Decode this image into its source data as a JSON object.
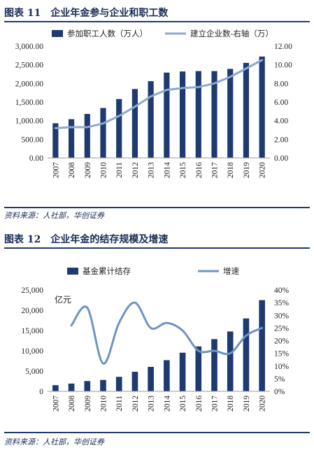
{
  "figure11": {
    "title": "图表 11　企业年金参与企业和职工数",
    "source": "资料来源：人社部，华创证券"
  },
  "figure12": {
    "title": "图表 12　企业年金的结存规模及增速",
    "source": "资料来源：人社部，华创证券"
  },
  "chart_data": [
    {
      "type": "bar",
      "title": "图表 11 企业年金参与企业和职工数",
      "categories": [
        "2007",
        "2008",
        "2009",
        "2010",
        "2011",
        "2012",
        "2013",
        "2014",
        "2015",
        "2016",
        "2017",
        "2018",
        "2019",
        "2020"
      ],
      "series": [
        {
          "name": "参加职工人数（万人）",
          "type": "bar",
          "axis": "left",
          "color": "#1f3a6e",
          "values": [
            930,
            1040,
            1180,
            1340,
            1580,
            1850,
            2060,
            2290,
            2320,
            2330,
            2330,
            2390,
            2550,
            2720
          ]
        },
        {
          "name": "建立企业数-右轴（万）",
          "type": "line",
          "axis": "right",
          "color": "#8fa8cf",
          "values": [
            3.2,
            3.3,
            3.3,
            3.7,
            4.5,
            5.5,
            6.6,
            7.3,
            7.5,
            7.6,
            8.0,
            8.7,
            9.6,
            10.5
          ]
        }
      ],
      "y_left": {
        "min": 0,
        "max": 3000,
        "ticks": [
          "0.00",
          "500.00",
          "1,000.00",
          "1,500.00",
          "2,000.00",
          "2,500.00",
          "3,000.00"
        ]
      },
      "y_right": {
        "min": 0,
        "max": 12,
        "ticks": [
          "0.00",
          "2.00",
          "4.00",
          "6.00",
          "8.00",
          "10.00",
          "12.00"
        ]
      },
      "legend": "top"
    },
    {
      "type": "bar",
      "title": "图表 12 企业年金的结存规模及增速",
      "unit_label": "亿元",
      "categories": [
        "2007",
        "2008",
        "2009",
        "2010",
        "2011",
        "2012",
        "2013",
        "2014",
        "2015",
        "2016",
        "2017",
        "2018",
        "2019",
        "2020"
      ],
      "series": [
        {
          "name": "基金累计结存",
          "type": "bar",
          "axis": "left",
          "color": "#1f3a6e",
          "values": [
            1519,
            1911,
            2533,
            2809,
            3570,
            4821,
            6035,
            7689,
            9526,
            11075,
            12880,
            14770,
            17985,
            22497
          ]
        },
        {
          "name": "增速",
          "type": "line",
          "axis": "right",
          "color": "#6e94c2",
          "smooth": true,
          "values": [
            null,
            0.26,
            0.33,
            0.11,
            0.27,
            0.35,
            0.25,
            0.27,
            0.24,
            0.16,
            0.16,
            0.15,
            0.22,
            0.25
          ]
        }
      ],
      "y_left": {
        "min": 0,
        "max": 25000,
        "ticks": [
          "0",
          "5,000",
          "10,000",
          "15,000",
          "20,000",
          "25,000"
        ]
      },
      "y_right": {
        "min": 0,
        "max": 0.4,
        "ticks": [
          "0%",
          "5%",
          "10%",
          "15%",
          "20%",
          "25%",
          "30%",
          "35%",
          "40%"
        ]
      },
      "legend": "top"
    }
  ]
}
